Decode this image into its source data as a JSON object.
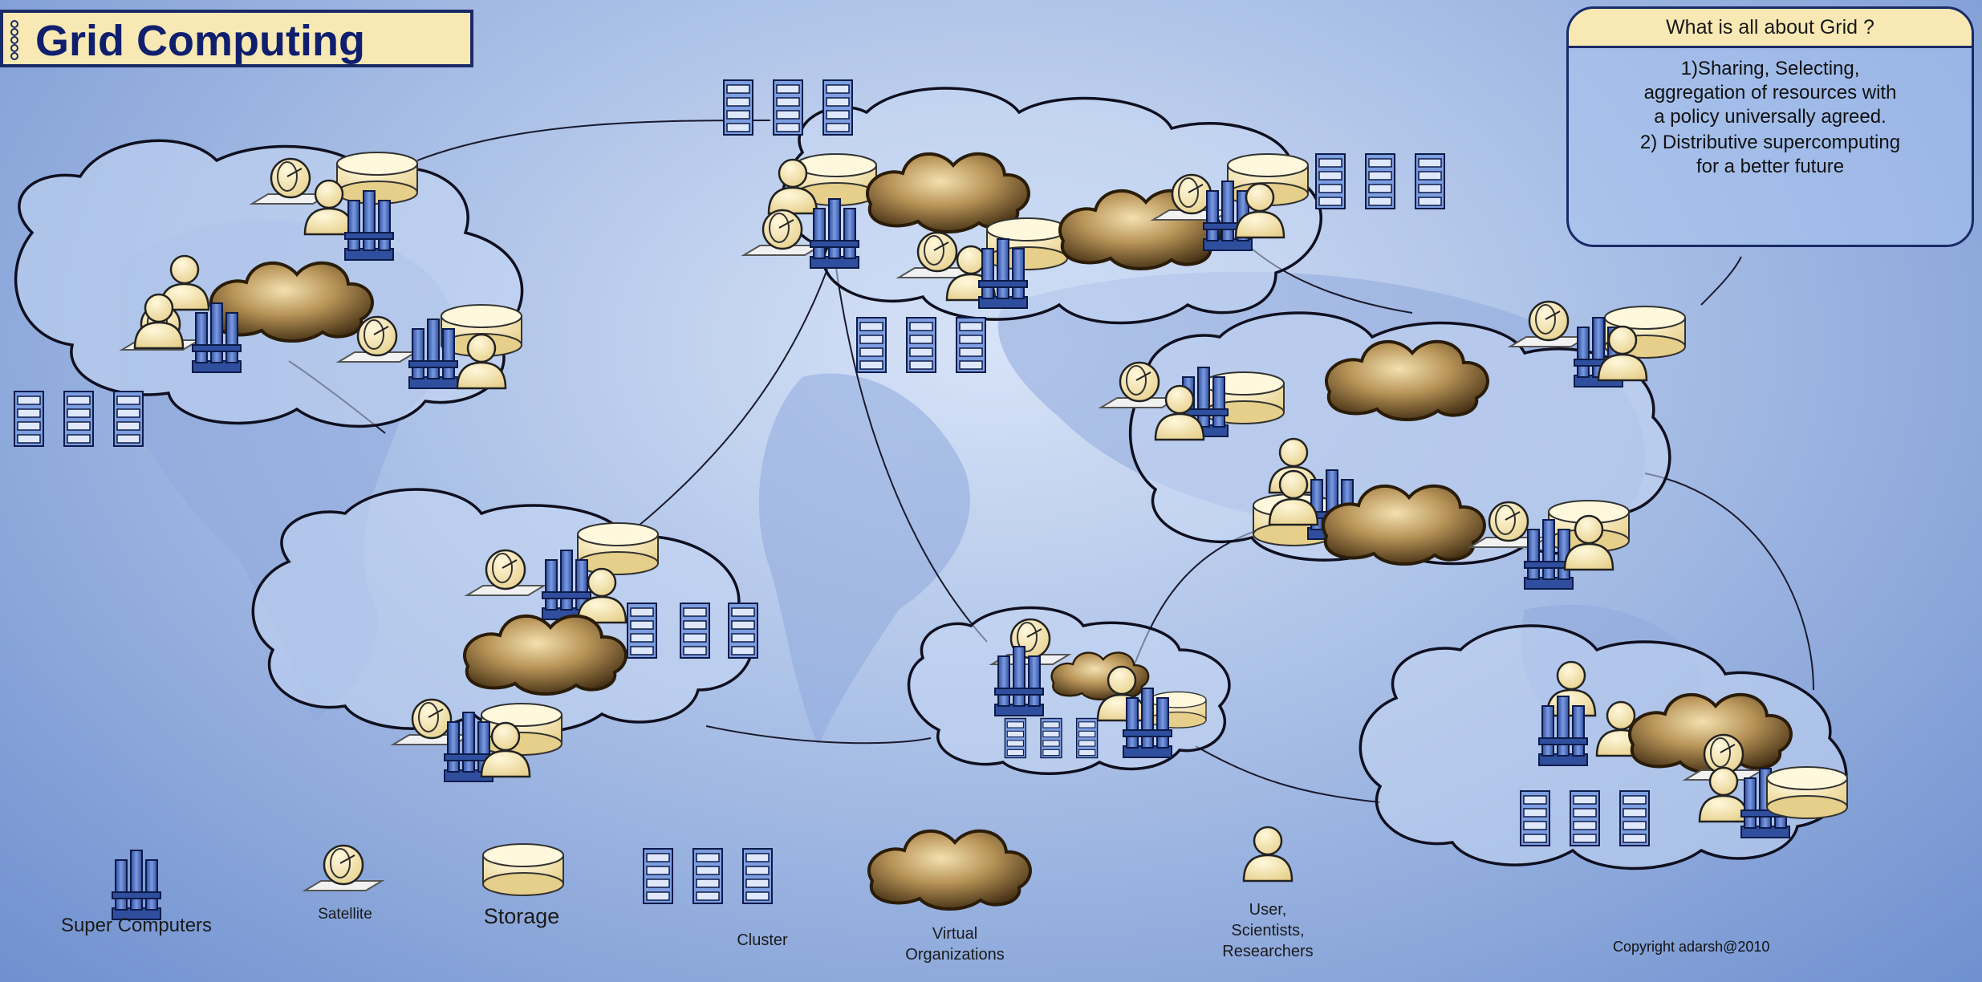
{
  "title": "Grid Computing",
  "info": {
    "heading": "What is all about Grid ?",
    "point1": [
      "1)Sharing, Selecting,",
      "aggregation of resources with",
      "a policy universally agreed."
    ],
    "point2": [
      "2) Distributive supercomputing",
      "for a better future"
    ]
  },
  "legend": {
    "supercomputers": "Super Computers",
    "satellite": "Satellite",
    "storage": "Storage",
    "cluster": "Cluster",
    "vo_line1": "Virtual",
    "vo_line2": "Organizations",
    "user_line1": "User,",
    "user_line2": "Scientists,",
    "user_line3": "Researchers"
  },
  "copyright": "Copyright adarsh@2010",
  "colors": {
    "navy": "#1a2a66",
    "cream": "#f7e8b4",
    "server_blue": "#4566b8",
    "vo_brown": "#7a5a28"
  }
}
